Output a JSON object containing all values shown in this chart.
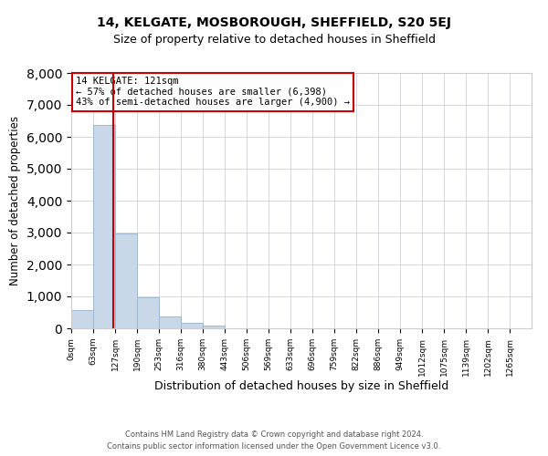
{
  "title1": "14, KELGATE, MOSBOROUGH, SHEFFIELD, S20 5EJ",
  "title2": "Size of property relative to detached houses in Sheffield",
  "xlabel": "Distribution of detached houses by size in Sheffield",
  "ylabel": "Number of detached properties",
  "bar_labels": [
    "0sqm",
    "63sqm",
    "127sqm",
    "190sqm",
    "253sqm",
    "316sqm",
    "380sqm",
    "443sqm",
    "506sqm",
    "569sqm",
    "633sqm",
    "696sqm",
    "759sqm",
    "822sqm",
    "886sqm",
    "949sqm",
    "1012sqm",
    "1075sqm",
    "1139sqm",
    "1202sqm",
    "1265sqm"
  ],
  "bar_values": [
    560,
    6380,
    2970,
    960,
    380,
    160,
    80,
    0,
    0,
    0,
    0,
    0,
    0,
    0,
    0,
    0,
    0,
    0,
    0,
    0,
    0
  ],
  "bar_color": "#c8d8e8",
  "bar_edge_color": "#a0b8d0",
  "property_line_x": 121,
  "bin_edges": [
    0,
    63,
    127,
    190,
    253,
    316,
    380,
    443,
    506,
    569,
    633,
    696,
    759,
    822,
    886,
    949,
    1012,
    1075,
    1139,
    1202,
    1265,
    1328
  ],
  "annotation_title": "14 KELGATE: 121sqm",
  "annotation_line1": "← 57% of detached houses are smaller (6,398)",
  "annotation_line2": "43% of semi-detached houses are larger (4,900) →",
  "annotation_box_color": "#ffffff",
  "annotation_box_edge_color": "#cc0000",
  "vline_color": "#cc0000",
  "ylim": [
    0,
    8000
  ],
  "yticks": [
    0,
    1000,
    2000,
    3000,
    4000,
    5000,
    6000,
    7000,
    8000
  ],
  "footer1": "Contains HM Land Registry data © Crown copyright and database right 2024.",
  "footer2": "Contains public sector information licensed under the Open Government Licence v3.0."
}
